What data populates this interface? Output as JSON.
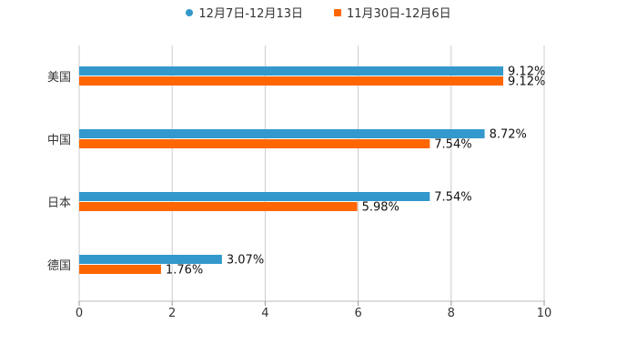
{
  "chart_data": {
    "type": "bar",
    "orientation": "horizontal",
    "categories": [
      "美国",
      "中国",
      "日本",
      "德国"
    ],
    "series": [
      {
        "name": "12月7日-12月13日",
        "color": "#3399cc",
        "marker": "circle",
        "values": [
          9.12,
          8.72,
          7.54,
          3.07
        ],
        "labels": [
          "9.12%",
          "8.72%",
          "7.54%",
          "3.07%"
        ]
      },
      {
        "name": "11月30日-12月6日",
        "color": "#ff6600",
        "marker": "square",
        "values": [
          9.12,
          7.54,
          5.98,
          1.76
        ],
        "labels": [
          "9.12%",
          "7.54%",
          "5.98%",
          "1.76%"
        ]
      }
    ],
    "xlim": [
      0,
      10
    ],
    "xticks": [
      "0",
      "2",
      "4",
      "6",
      "8",
      "10"
    ],
    "grid": true,
    "legend": "top-center"
  }
}
